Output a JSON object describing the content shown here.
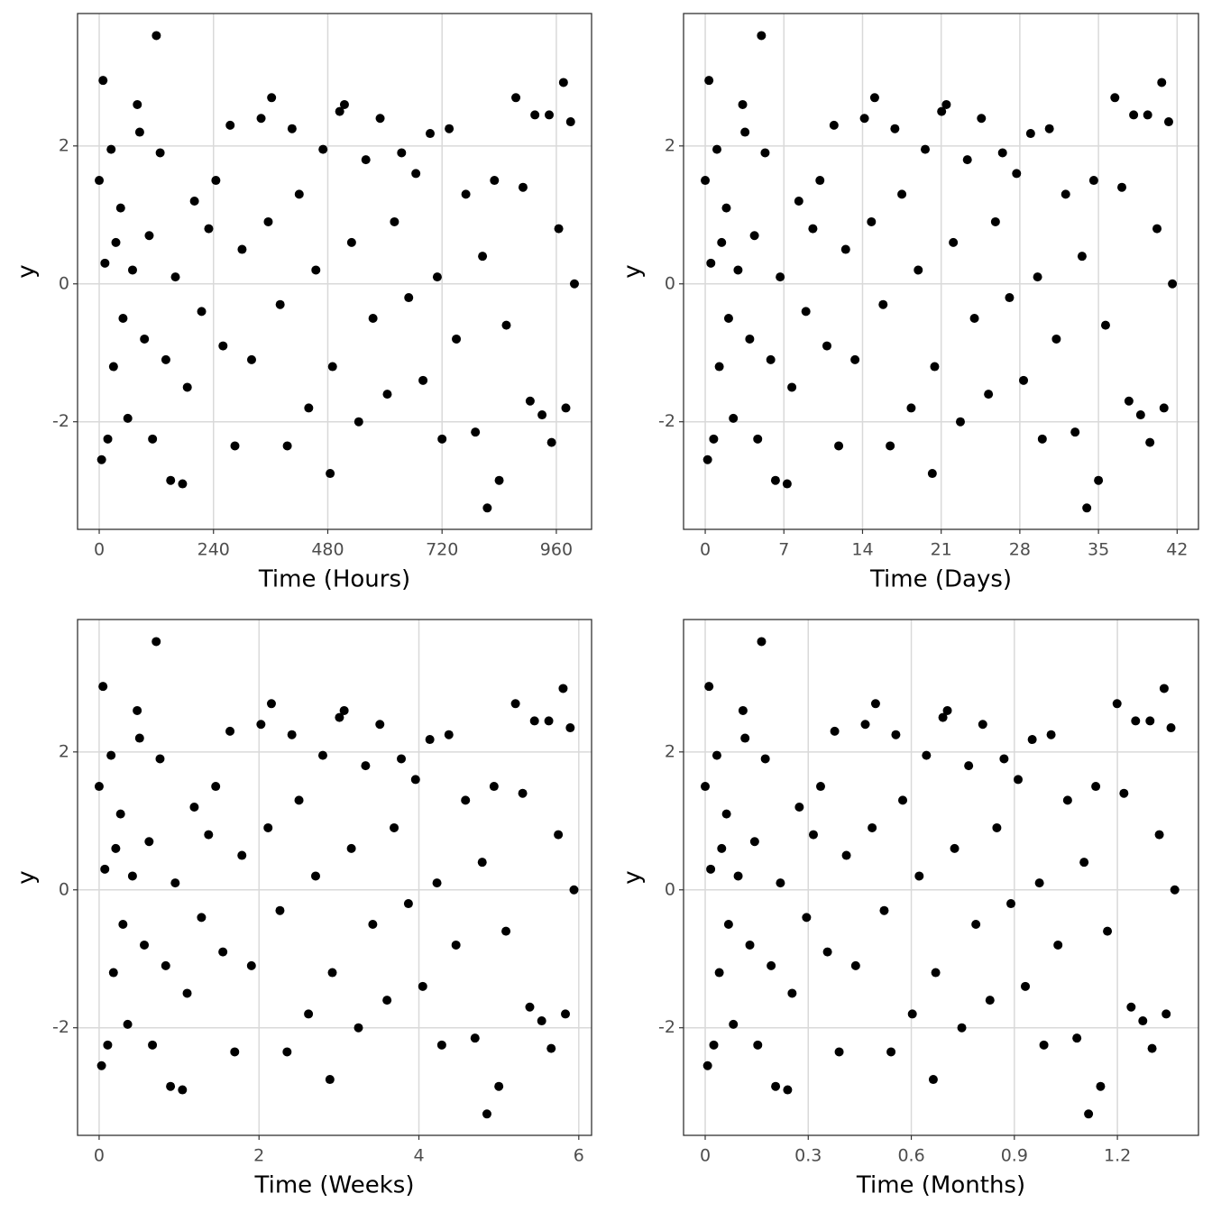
{
  "chart_data": [
    {
      "type": "scatter",
      "xlabel": "Time (Hours)",
      "ylabel": "y",
      "color": "#000000",
      "grid": true,
      "xlim": [
        -45.5,
        1034
      ],
      "ylim": [
        -3.56,
        3.92
      ],
      "xticks": [
        0,
        240,
        480,
        720,
        960
      ],
      "yticks": [
        -2,
        0,
        2
      ],
      "series": [
        {
          "x": [
            0,
            5,
            8,
            12,
            18,
            25,
            30,
            35,
            45,
            50,
            60,
            70,
            80,
            85,
            95,
            105,
            112,
            120,
            128,
            140,
            150,
            160,
            175,
            185,
            200,
            215,
            230,
            245,
            260,
            275,
            285,
            300,
            320,
            340,
            355,
            362,
            380,
            395,
            405,
            420,
            440,
            455,
            470,
            485,
            490,
            505,
            515,
            530,
            545,
            560,
            575,
            590,
            605,
            620,
            635,
            650,
            665,
            680,
            695,
            710,
            720,
            735,
            750,
            770,
            790,
            805,
            815,
            830,
            840,
            855,
            875,
            890,
            905,
            915,
            930,
            945,
            950,
            965,
            975,
            980,
            990,
            998
          ],
          "values": [
            1.5,
            -2.55,
            2.95,
            0.3,
            -2.25,
            1.95,
            -1.2,
            0.6,
            1.1,
            -0.5,
            -1.95,
            0.2,
            2.6,
            2.2,
            -0.8,
            0.7,
            -2.25,
            3.6,
            1.9,
            -1.1,
            -2.85,
            0.1,
            -2.9,
            -1.5,
            1.2,
            -0.4,
            0.8,
            1.5,
            -0.9,
            2.3,
            -2.35,
            0.5,
            -1.1,
            2.4,
            0.9,
            2.7,
            -0.3,
            -2.35,
            2.25,
            1.3,
            -1.8,
            0.2,
            1.95,
            -2.75,
            -1.2,
            2.5,
            2.6,
            0.6,
            -2.0,
            1.8,
            -0.5,
            2.4,
            -1.6,
            0.9,
            1.9,
            -0.2,
            1.6,
            -1.4,
            2.18,
            0.1,
            -2.25,
            2.25,
            -0.8,
            1.3,
            -2.15,
            0.4,
            -3.25,
            1.5,
            -2.85,
            -0.6,
            2.7,
            1.4,
            -1.7,
            2.45,
            -1.9,
            2.45,
            -2.3,
            0.8,
            2.92,
            -1.8,
            2.35,
            0.0
          ]
        }
      ]
    },
    {
      "type": "scatter",
      "xlabel": "Time (Days)",
      "ylabel": "y",
      "color": "#000000",
      "grid": true,
      "xlim": [
        -1.93,
        43.9
      ],
      "ylim": [
        -3.56,
        3.92
      ],
      "xticks": [
        0,
        7,
        14,
        21,
        28,
        35,
        42
      ],
      "yticks": [
        -2,
        0,
        2
      ],
      "series": [
        {
          "x": [
            0,
            0.21,
            0.33,
            0.5,
            0.75,
            1.04,
            1.25,
            1.46,
            1.88,
            2.08,
            2.5,
            2.92,
            3.33,
            3.54,
            3.96,
            4.38,
            4.67,
            5,
            5.33,
            5.83,
            6.25,
            6.67,
            7.29,
            7.71,
            8.33,
            8.96,
            9.58,
            10.21,
            10.83,
            11.46,
            11.88,
            12.5,
            13.33,
            14.17,
            14.79,
            15.08,
            15.83,
            16.46,
            16.88,
            17.5,
            18.33,
            18.96,
            19.58,
            20.21,
            20.42,
            21.04,
            21.46,
            22.08,
            22.71,
            23.33,
            23.96,
            24.58,
            25.21,
            25.83,
            26.46,
            27.08,
            27.71,
            28.33,
            28.96,
            29.58,
            30,
            30.63,
            31.25,
            32.08,
            32.92,
            33.54,
            33.96,
            34.58,
            35,
            35.63,
            36.46,
            37.08,
            37.71,
            38.13,
            38.75,
            39.38,
            39.58,
            40.21,
            40.63,
            40.83,
            41.25,
            41.58
          ],
          "values": [
            1.5,
            -2.55,
            2.95,
            0.3,
            -2.25,
            1.95,
            -1.2,
            0.6,
            1.1,
            -0.5,
            -1.95,
            0.2,
            2.6,
            2.2,
            -0.8,
            0.7,
            -2.25,
            3.6,
            1.9,
            -1.1,
            -2.85,
            0.1,
            -2.9,
            -1.5,
            1.2,
            -0.4,
            0.8,
            1.5,
            -0.9,
            2.3,
            -2.35,
            0.5,
            -1.1,
            2.4,
            0.9,
            2.7,
            -0.3,
            -2.35,
            2.25,
            1.3,
            -1.8,
            0.2,
            1.95,
            -2.75,
            -1.2,
            2.5,
            2.6,
            0.6,
            -2.0,
            1.8,
            -0.5,
            2.4,
            -1.6,
            0.9,
            1.9,
            -0.2,
            1.6,
            -1.4,
            2.18,
            0.1,
            -2.25,
            2.25,
            -0.8,
            1.3,
            -2.15,
            0.4,
            -3.25,
            1.5,
            -2.85,
            -0.6,
            2.7,
            1.4,
            -1.7,
            2.45,
            -1.9,
            2.45,
            -2.3,
            0.8,
            2.92,
            -1.8,
            2.35,
            0.0
          ]
        }
      ]
    },
    {
      "type": "scatter",
      "xlabel": "Time (Weeks)",
      "ylabel": "y",
      "color": "#000000",
      "grid": true,
      "xlim": [
        -0.27,
        6.16
      ],
      "ylim": [
        -3.56,
        3.92
      ],
      "xticks": [
        0,
        2,
        4,
        6
      ],
      "yticks": [
        -2,
        0,
        2
      ],
      "series": [
        {
          "x": [
            0,
            0.03,
            0.048,
            0.071,
            0.107,
            0.149,
            0.179,
            0.208,
            0.268,
            0.298,
            0.357,
            0.417,
            0.476,
            0.506,
            0.565,
            0.625,
            0.667,
            0.714,
            0.762,
            0.833,
            0.893,
            0.952,
            1.042,
            1.101,
            1.19,
            1.28,
            1.369,
            1.458,
            1.548,
            1.637,
            1.696,
            1.786,
            1.905,
            2.024,
            2.113,
            2.155,
            2.262,
            2.351,
            2.411,
            2.5,
            2.619,
            2.708,
            2.798,
            2.887,
            2.917,
            3.006,
            3.065,
            3.155,
            3.244,
            3.333,
            3.423,
            3.512,
            3.601,
            3.69,
            3.78,
            3.869,
            3.958,
            4.048,
            4.137,
            4.226,
            4.286,
            4.375,
            4.464,
            4.583,
            4.702,
            4.792,
            4.851,
            4.94,
            5,
            5.089,
            5.208,
            5.298,
            5.387,
            5.446,
            5.536,
            5.625,
            5.655,
            5.744,
            5.804,
            5.833,
            5.893,
            5.94
          ],
          "values": [
            1.5,
            -2.55,
            2.95,
            0.3,
            -2.25,
            1.95,
            -1.2,
            0.6,
            1.1,
            -0.5,
            -1.95,
            0.2,
            2.6,
            2.2,
            -0.8,
            0.7,
            -2.25,
            3.6,
            1.9,
            -1.1,
            -2.85,
            0.1,
            -2.9,
            -1.5,
            1.2,
            -0.4,
            0.8,
            1.5,
            -0.9,
            2.3,
            -2.35,
            0.5,
            -1.1,
            2.4,
            0.9,
            2.7,
            -0.3,
            -2.35,
            2.25,
            1.3,
            -1.8,
            0.2,
            1.95,
            -2.75,
            -1.2,
            2.5,
            2.6,
            0.6,
            -2.0,
            1.8,
            -0.5,
            2.4,
            -1.6,
            0.9,
            1.9,
            -0.2,
            1.6,
            -1.4,
            2.18,
            0.1,
            -2.25,
            2.25,
            -0.8,
            1.3,
            -2.15,
            0.4,
            -3.25,
            1.5,
            -2.85,
            -0.6,
            2.7,
            1.4,
            -1.7,
            2.45,
            -1.9,
            2.45,
            -2.3,
            0.8,
            2.92,
            -1.8,
            2.35,
            0.0
          ]
        }
      ]
    },
    {
      "type": "scatter",
      "xlabel": "Time (Months)",
      "ylabel": "y",
      "color": "#000000",
      "grid": true,
      "xlim": [
        -0.063,
        1.436
      ],
      "ylim": [
        -3.56,
        3.92
      ],
      "xticks": [
        0,
        0.3,
        0.6,
        0.9,
        1.2
      ],
      "yticks": [
        -2,
        0,
        2
      ],
      "series": [
        {
          "x": [
            0,
            0.007,
            0.011,
            0.016,
            0.025,
            0.034,
            0.041,
            0.048,
            0.062,
            0.068,
            0.082,
            0.096,
            0.11,
            0.116,
            0.13,
            0.144,
            0.153,
            0.164,
            0.175,
            0.192,
            0.205,
            0.219,
            0.24,
            0.253,
            0.274,
            0.295,
            0.315,
            0.336,
            0.356,
            0.377,
            0.39,
            0.411,
            0.438,
            0.466,
            0.486,
            0.496,
            0.521,
            0.541,
            0.555,
            0.575,
            0.603,
            0.623,
            0.644,
            0.664,
            0.671,
            0.692,
            0.705,
            0.726,
            0.747,
            0.767,
            0.788,
            0.808,
            0.829,
            0.849,
            0.87,
            0.89,
            0.911,
            0.932,
            0.952,
            0.973,
            0.986,
            1.007,
            1.027,
            1.055,
            1.082,
            1.103,
            1.116,
            1.137,
            1.151,
            1.171,
            1.199,
            1.219,
            1.24,
            1.253,
            1.274,
            1.295,
            1.301,
            1.322,
            1.336,
            1.342,
            1.356,
            1.367
          ],
          "values": [
            1.5,
            -2.55,
            2.95,
            0.3,
            -2.25,
            1.95,
            -1.2,
            0.6,
            1.1,
            -0.5,
            -1.95,
            0.2,
            2.6,
            2.2,
            -0.8,
            0.7,
            -2.25,
            3.6,
            1.9,
            -1.1,
            -2.85,
            0.1,
            -2.9,
            -1.5,
            1.2,
            -0.4,
            0.8,
            1.5,
            -0.9,
            2.3,
            -2.35,
            0.5,
            -1.1,
            2.4,
            0.9,
            2.7,
            -0.3,
            -2.35,
            2.25,
            1.3,
            -1.8,
            0.2,
            1.95,
            -2.75,
            -1.2,
            2.5,
            2.6,
            0.6,
            -2.0,
            1.8,
            -0.5,
            2.4,
            -1.6,
            0.9,
            1.9,
            -0.2,
            1.6,
            -1.4,
            2.18,
            0.1,
            -2.25,
            2.25,
            -0.8,
            1.3,
            -2.15,
            0.4,
            -3.25,
            1.5,
            -2.85,
            -0.6,
            2.7,
            1.4,
            -1.7,
            2.45,
            -1.9,
            2.45,
            -2.3,
            0.8,
            2.92,
            -1.8,
            2.35,
            0.0
          ]
        }
      ]
    }
  ]
}
